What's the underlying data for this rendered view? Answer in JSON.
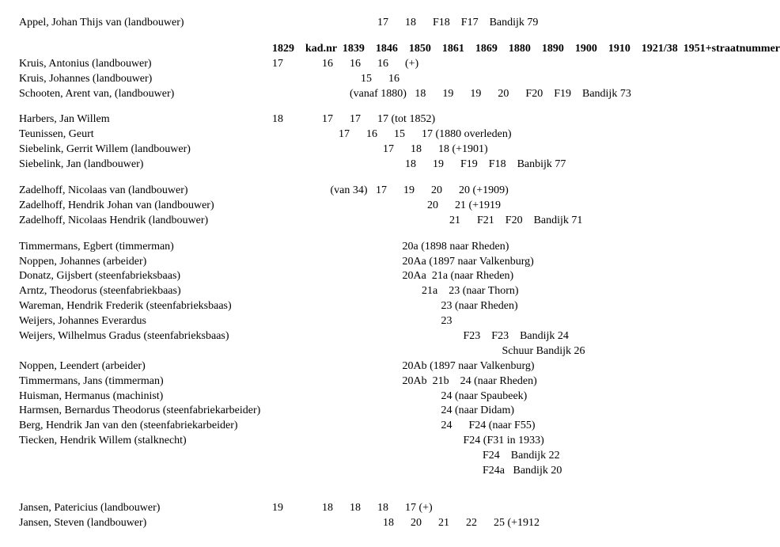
{
  "header": {
    "cols": [
      "1829",
      "kad.nr",
      "1839",
      "1846",
      "1850",
      "1861",
      "1869",
      "1880",
      "1890",
      "1900",
      "1910",
      "1921/38",
      "1951+straatnummer"
    ]
  },
  "rows": [
    {
      "type": "data",
      "name": "Appel, Johan Thijs van (landbouwer)",
      "cells": "                                      17      18      F18    F17    Bandijk 79"
    },
    {
      "type": "gap"
    },
    {
      "type": "header"
    },
    {
      "type": "data",
      "name": "Kruis, Antonius (landbouwer)",
      "cells": "17              16      16      16      (+)"
    },
    {
      "type": "data",
      "name": "Kruis, Johannes (landbouwer)",
      "cells": "                                15      16"
    },
    {
      "type": "data",
      "name": "Schooten, Arent van, (landbouwer)",
      "cells": "                            (vanaf 1880)   18      19      19      20      F20    F19    Bandijk 73"
    },
    {
      "type": "gap"
    },
    {
      "type": "data",
      "name": "Harbers, Jan Willem",
      "cells": "18              17      17      17 (tot 1852)"
    },
    {
      "type": "data",
      "name": "Teunissen, Geurt",
      "cells": "                        17      16      15      17 (1880 overleden)"
    },
    {
      "type": "data",
      "name": "Siebelink, Gerrit Willem (landbouwer)",
      "cells": "                                        17      18      18 (+1901)"
    },
    {
      "type": "data",
      "name": "Siebelink, Jan (landbouwer)",
      "cells": "                                                18      19      F19    F18    Banbijk 77"
    },
    {
      "type": "gap"
    },
    {
      "type": "data",
      "name": "Zadelhoff, Nicolaas van (landbouwer)",
      "cells": "                     (van 34)   17      19      20      20 (+1909)"
    },
    {
      "type": "data",
      "name": "Zadelhoff, Hendrik Johan van (landbouwer)",
      "cells": "                                                        20      21 (+1919"
    },
    {
      "type": "data",
      "name": "Zadelhoff, Nicolaas Hendrik (landbouwer)",
      "cells": "                                                                21      F21    F20    Bandijk 71"
    },
    {
      "type": "gap"
    },
    {
      "type": "data",
      "name": "Timmermans, Egbert (timmerman)",
      "cells": "                                               20a (1898 naar Rheden)"
    },
    {
      "type": "data",
      "name": "Noppen, Johannes (arbeider)",
      "cells": "                                               20Aa (1897 naar Valkenburg)"
    },
    {
      "type": "data",
      "name": "Donatz, Gijsbert (steenfabrieksbaas)",
      "cells": "                                               20Aa  21a (naar Rheden)"
    },
    {
      "type": "data",
      "name": "Arntz, Theodorus (steenfabriekbaas)",
      "cells": "                                                      21a    23 (naar Thorn)"
    },
    {
      "type": "data",
      "name": "Wareman, Hendrik Frederik (steenfabrieksbaas)",
      "cells": "                                                             23 (naar Rheden)"
    },
    {
      "type": "data",
      "name": "Weijers, Johannes Everardus",
      "cells": "                                                             23"
    },
    {
      "type": "data",
      "name": "Weijers, Wilhelmus Gradus (steenfabrieksbaas)",
      "cells": "                                                                     F23    F23    Bandijk 24"
    },
    {
      "type": "data",
      "name": "",
      "cells": "                                                                                   Schuur Bandijk 26"
    },
    {
      "type": "data",
      "name": "Noppen, Leendert (arbeider)",
      "cells": "                                               20Ab (1897 naar Valkenburg)"
    },
    {
      "type": "data",
      "name": "Timmermans, Jans (timmerman)",
      "cells": "                                               20Ab  21b    24 (naar Rheden)"
    },
    {
      "type": "data",
      "name": "Huisman, Hermanus (machinist)",
      "cells": "                                                             24 (naar Spaubeek)"
    },
    {
      "type": "data",
      "name": "Harmsen, Bernardus Theodorus (steenfabriekarbeider)",
      "cells": "                                                             24 (naar Didam)"
    },
    {
      "type": "data",
      "name": "Berg, Hendrik Jan van den (steenfabriekarbeider)",
      "cells": "                                                             24      F24 (naar F55)"
    },
    {
      "type": "data",
      "name": "Tiecken, Hendrik Willem (stalknecht)",
      "cells": "                                                                     F24 (F31 in 1933)"
    },
    {
      "type": "data",
      "name": "",
      "cells": "                                                                            F24    Bandijk 22"
    },
    {
      "type": "data",
      "name": "",
      "cells": "                                                                            F24a   Bandijk 20"
    },
    {
      "type": "gap"
    },
    {
      "type": "gap"
    },
    {
      "type": "data",
      "name": "Jansen, Patericius (landbouwer)",
      "cells": "19              18      18      18      17 (+)"
    },
    {
      "type": "data",
      "name": "Jansen, Steven (landbouwer)",
      "cells": "                                        18      20      21      22      25 (+1912"
    }
  ]
}
